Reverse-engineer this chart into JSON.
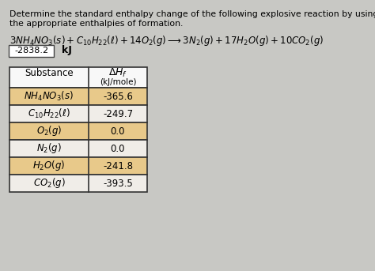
{
  "title_line1": "Determine the standard enthalpy change of the following explosive reaction by using",
  "title_line2": "the appropriate enthalpies of formation.",
  "answer_box": "-2838.2",
  "answer_unit": "kJ",
  "dHf_values": [
    "-365.6",
    "-249.7",
    "0.0",
    "0.0",
    "-241.8",
    "-393.5"
  ],
  "row_colors": [
    "#e8c98a",
    "#f0ede8",
    "#e8c98a",
    "#f0ede8",
    "#e8c98a",
    "#f0ede8"
  ],
  "header_color": "#f8f8f8",
  "bg_color": "#c8c8c4",
  "title_fontsize": 7.8,
  "table_fontsize": 8.5,
  "header_fontsize": 8.5
}
